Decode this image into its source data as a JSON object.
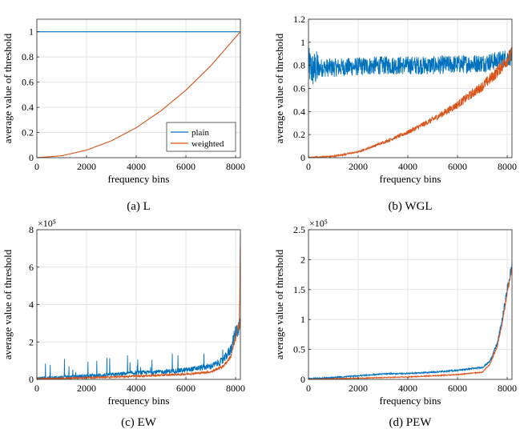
{
  "colors": {
    "plain": "#0072BD",
    "weighted": "#D95319",
    "grid": "#e3e3e3",
    "axis": "#262626"
  },
  "chart_data": [
    {
      "id": "a",
      "type": "line",
      "caption": "(a) L",
      "xlabel": "frequency bins",
      "ylabel": "average value of threshold",
      "xlim": [
        0,
        8192
      ],
      "ylim": [
        0,
        1.1
      ],
      "xticks": [
        0,
        2000,
        4000,
        6000,
        8000
      ],
      "xtick_labels": [
        "0",
        "2000",
        "4000",
        "6000",
        "8000"
      ],
      "yticks": [
        0,
        0.2,
        0.4,
        0.6,
        0.8,
        1
      ],
      "ytick_labels": [
        "0",
        "0.2",
        "0.4",
        "0.6",
        "0.8",
        "1"
      ],
      "exponent": "",
      "grid": true,
      "legend": {
        "placement": "bottom-right",
        "entries": [
          "plain",
          "weighted"
        ]
      },
      "series": [
        {
          "name": "plain",
          "x": [
            0,
            8192
          ],
          "y": [
            1,
            1
          ]
        },
        {
          "name": "weighted",
          "x": [
            0,
            1000,
            2000,
            3000,
            4000,
            5000,
            6000,
            7000,
            8192
          ],
          "y": [
            0,
            0.015,
            0.06,
            0.134,
            0.238,
            0.373,
            0.536,
            0.73,
            1.0
          ]
        }
      ]
    },
    {
      "id": "b",
      "type": "line",
      "caption": "(b) WGL",
      "xlabel": "frequency bins",
      "ylabel": "average value of threshold",
      "xlim": [
        0,
        8192
      ],
      "ylim": [
        0,
        1.2
      ],
      "xticks": [
        0,
        2000,
        4000,
        6000,
        8000
      ],
      "xtick_labels": [
        "0",
        "2000",
        "4000",
        "6000",
        "8000"
      ],
      "yticks": [
        0,
        0.2,
        0.4,
        0.6,
        0.8,
        1,
        1.2
      ],
      "ytick_labels": [
        "0",
        "0.2",
        "0.4",
        "0.6",
        "0.8",
        "1",
        "1.2"
      ],
      "exponent": "",
      "grid": true,
      "legend": null,
      "series": [
        {
          "name": "",
          "x": [
            0,
            150,
            500,
            1000,
            2000,
            3000,
            4000,
            5000,
            6000,
            7000,
            7600,
            8192
          ],
          "y": [
            0.8,
            0.76,
            0.78,
            0.78,
            0.79,
            0.8,
            0.8,
            0.8,
            0.81,
            0.82,
            0.84,
            0.88
          ],
          "noise": 0.08
        },
        {
          "name": "",
          "x": [
            0,
            1000,
            2000,
            3000,
            4000,
            5000,
            6000,
            7000,
            7500,
            8192
          ],
          "y": [
            0,
            0.012,
            0.05,
            0.13,
            0.22,
            0.33,
            0.46,
            0.62,
            0.72,
            0.9
          ],
          "noise": 0.02
        }
      ]
    },
    {
      "id": "c",
      "type": "line",
      "caption": "(c) EW",
      "xlabel": "frequency bins",
      "ylabel": "average value of threshold",
      "xlim": [
        0,
        8192
      ],
      "ylim": [
        0,
        8
      ],
      "xticks": [
        0,
        2000,
        4000,
        6000,
        8000
      ],
      "xtick_labels": [
        "0",
        "2000",
        "4000",
        "6000",
        "8000"
      ],
      "yticks": [
        0,
        2,
        4,
        6,
        8
      ],
      "ytick_labels": [
        "0",
        "2",
        "4",
        "6",
        "8"
      ],
      "exponent": "×10⁵",
      "grid": true,
      "legend": null,
      "series": [
        {
          "name": "",
          "x": [
            0,
            1000,
            2000,
            3000,
            4000,
            5000,
            6000,
            7000,
            7500,
            7800,
            8000,
            8192
          ],
          "y": [
            0.05,
            0.1,
            0.18,
            0.25,
            0.35,
            0.4,
            0.5,
            0.7,
            1.0,
            1.6,
            2.5,
            3.0
          ],
          "noise": 0.3,
          "spikes": true
        },
        {
          "name": "",
          "x": [
            0,
            1000,
            2000,
            3000,
            4000,
            5000,
            6000,
            7000,
            7500,
            7800,
            8000,
            8150,
            8192
          ],
          "y": [
            0.02,
            0.05,
            0.1,
            0.12,
            0.18,
            0.22,
            0.28,
            0.4,
            0.7,
            1.2,
            2.2,
            3.0,
            7.8
          ],
          "noise": 0.15
        }
      ]
    },
    {
      "id": "d",
      "type": "line",
      "caption": "(d) PEW",
      "xlabel": "frequency bins",
      "ylabel": "average value of threshold",
      "xlim": [
        0,
        8192
      ],
      "ylim": [
        0,
        2.5
      ],
      "xticks": [
        0,
        2000,
        4000,
        6000,
        8000
      ],
      "xtick_labels": [
        "0",
        "2000",
        "4000",
        "6000",
        "8000"
      ],
      "yticks": [
        0,
        0.5,
        1,
        1.5,
        2,
        2.5
      ],
      "ytick_labels": [
        "0",
        "0.5",
        "1",
        "1.5",
        "2",
        "2.5"
      ],
      "exponent": "×10⁵",
      "grid": true,
      "legend": null,
      "series": [
        {
          "name": "",
          "x": [
            0,
            1000,
            2000,
            3000,
            4000,
            5000,
            6000,
            7000,
            7300,
            7600,
            7800,
            8000,
            8192
          ],
          "y": [
            0.01,
            0.03,
            0.06,
            0.09,
            0.1,
            0.12,
            0.15,
            0.2,
            0.3,
            0.6,
            1.0,
            1.5,
            1.9
          ],
          "noise": 0.03
        },
        {
          "name": "",
          "x": [
            0,
            1000,
            2000,
            3000,
            4000,
            5000,
            6000,
            7000,
            7300,
            7600,
            7800,
            8000,
            8192
          ],
          "y": [
            0.0,
            0.01,
            0.02,
            0.03,
            0.04,
            0.06,
            0.08,
            0.12,
            0.25,
            0.55,
            0.95,
            1.45,
            1.85
          ],
          "noise": 0.02
        }
      ]
    }
  ]
}
